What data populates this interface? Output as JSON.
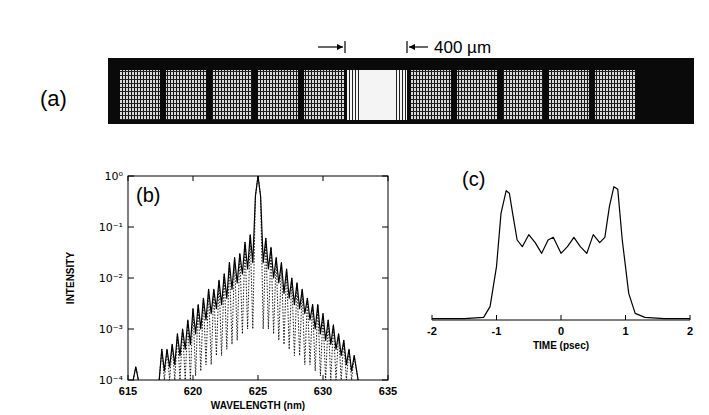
{
  "panel_a": {
    "label": "(a)",
    "scale_bar": "400 µm"
  },
  "chart_data": [
    {
      "type": "line",
      "label": "(b)",
      "xlabel": "WAVELENGTH (nm)",
      "ylabel": "INTENSITY",
      "log": "y",
      "x": [
        615.4,
        615.6,
        615.8,
        616.5,
        617.4,
        617.6,
        617.8,
        618.0,
        618.2,
        618.4,
        618.6,
        618.8,
        619.0,
        619.2,
        619.4,
        619.6,
        619.8,
        620.0,
        620.2,
        620.4,
        620.6,
        620.8,
        621.0,
        621.2,
        621.4,
        621.6,
        621.8,
        622.0,
        622.2,
        622.4,
        622.6,
        622.8,
        623.0,
        623.2,
        623.4,
        623.6,
        623.8,
        624.0,
        624.2,
        624.4,
        624.6,
        624.8,
        625.0,
        625.2,
        625.4,
        625.6,
        625.8,
        626.0,
        626.2,
        626.4,
        626.6,
        626.8,
        627.0,
        627.2,
        627.4,
        627.6,
        627.8,
        628.0,
        628.2,
        628.4,
        628.6,
        628.8,
        629.0,
        629.2,
        629.4,
        629.6,
        629.8,
        630.0,
        630.2,
        630.4,
        630.6,
        630.8,
        631.0,
        631.2,
        631.4,
        631.6,
        631.8,
        632.0,
        632.2,
        632.4,
        632.7
      ],
      "series": [
        {
          "color": "#000000",
          "line_style": "solid",
          "values": [
            0.0001,
            0.00018,
            0.0001,
            null,
            0.0001,
            0.0004,
            0.00015,
            0.0004,
            0.00018,
            0.0005,
            0.0002,
            0.0008,
            0.0003,
            0.001,
            0.0004,
            0.0015,
            0.0005,
            0.0025,
            0.0008,
            0.003,
            0.001,
            0.004,
            0.0015,
            0.006,
            0.002,
            0.006,
            0.0025,
            0.009,
            0.003,
            0.012,
            0.004,
            0.02,
            0.006,
            0.025,
            0.008,
            0.03,
            0.012,
            0.05,
            0.015,
            0.07,
            0.02,
            0.4,
            1,
            0.4,
            0.02,
            0.06,
            0.015,
            0.04,
            0.01,
            0.025,
            0.008,
            0.02,
            0.005,
            0.015,
            0.004,
            0.01,
            0.003,
            0.008,
            0.0025,
            0.006,
            0.002,
            0.004,
            0.0015,
            0.003,
            0.001,
            0.003,
            0.0008,
            0.002,
            0.0006,
            0.0015,
            0.0005,
            0.0012,
            0.0004,
            0.0008,
            0.0003,
            0.0006,
            0.0002,
            0.0004,
            0.00015,
            0.0003,
            0.0001
          ]
        },
        {
          "color": "#000000",
          "line_style": "dotted",
          "values": [
            0.0001,
            0.00018,
            0.0001,
            null,
            0.0001,
            0.0004,
            0.0001,
            0.0004,
            0.0001,
            0.0005,
            0.0001,
            0.0008,
            0.0001,
            0.001,
            0.0001,
            0.0015,
            0.0001,
            0.0025,
            0.00012,
            0.003,
            0.00015,
            0.004,
            0.0002,
            0.006,
            0.0002,
            0.006,
            0.0003,
            0.009,
            0.0003,
            0.012,
            0.0004,
            0.02,
            0.0005,
            0.025,
            0.0006,
            0.03,
            0.0008,
            0.05,
            0.001,
            0.07,
            0.001,
            0.4,
            1,
            0.4,
            0.001,
            0.06,
            0.001,
            0.04,
            0.0008,
            0.025,
            0.0006,
            0.02,
            0.0005,
            0.015,
            0.0004,
            0.01,
            0.0003,
            0.008,
            0.0003,
            0.006,
            0.0002,
            0.004,
            0.0002,
            0.003,
            0.00015,
            0.003,
            0.00012,
            0.002,
            0.0001,
            0.0015,
            0.0001,
            0.0012,
            0.0001,
            0.0008,
            0.0001,
            0.0006,
            0.0001,
            0.0004,
            0.0001,
            0.0003,
            0.0001
          ]
        }
      ],
      "xlim": [
        615,
        635
      ],
      "xticks": [
        615,
        620,
        625,
        630,
        635
      ],
      "ylim": [
        0.0001,
        1
      ],
      "yticks": [
        {
          "value": 0.0001,
          "label": "10⁻⁴"
        },
        {
          "value": 0.001,
          "label": "10⁻³"
        },
        {
          "value": 0.01,
          "label": "10⁻²"
        },
        {
          "value": 0.1,
          "label": "10⁻¹"
        },
        {
          "value": 1,
          "label": "10⁰"
        }
      ]
    },
    {
      "type": "line",
      "label": "(c)",
      "xlabel": "TIME (psec)",
      "color": "#000000",
      "tick_labels": "x",
      "x": [
        -2.0,
        -1.5,
        -1.2,
        -1.1,
        -1.0,
        -0.93,
        -0.85,
        -0.8,
        -0.75,
        -0.68,
        -0.6,
        -0.5,
        -0.4,
        -0.3,
        -0.2,
        -0.12,
        0,
        0.1,
        0.2,
        0.3,
        0.4,
        0.5,
        0.6,
        0.68,
        0.75,
        0.82,
        0.88,
        0.95,
        1.05,
        1.15,
        1.3,
        1.6,
        2.0
      ],
      "values": [
        0.01,
        0.01,
        0.02,
        0.1,
        0.4,
        0.8,
        0.97,
        0.95,
        0.8,
        0.6,
        0.55,
        0.64,
        0.58,
        0.5,
        0.6,
        0.62,
        0.5,
        0.55,
        0.62,
        0.55,
        0.5,
        0.64,
        0.58,
        0.62,
        0.85,
        1.0,
        0.98,
        0.6,
        0.2,
        0.05,
        0.02,
        0.01,
        0.01
      ],
      "xlim": [
        -2,
        2
      ],
      "xticks": [
        -2,
        -1,
        0,
        1,
        2
      ],
      "ylim": [
        0,
        1.2
      ]
    }
  ]
}
